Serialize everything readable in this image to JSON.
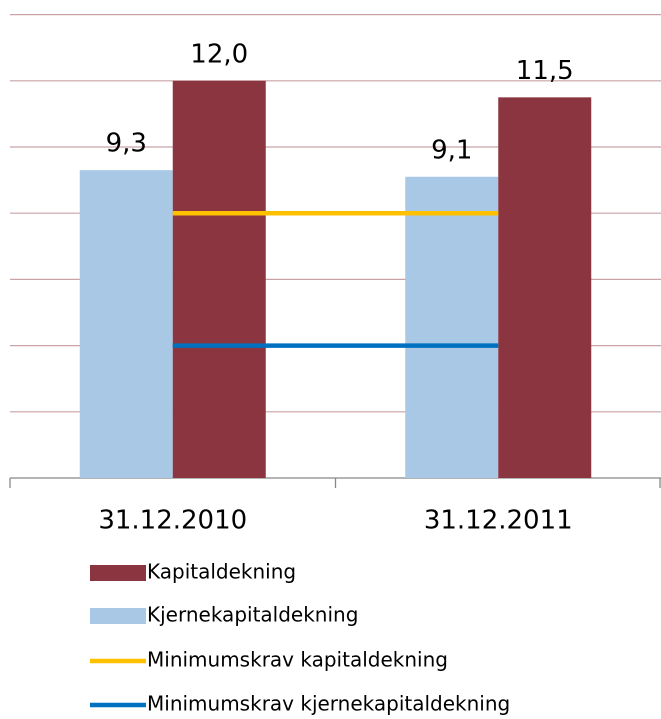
{
  "chart_data": {
    "type": "bar",
    "categories": [
      "31.12.2010",
      "31.12.2011"
    ],
    "series": [
      {
        "name": "Kapitaldekning",
        "type": "bar",
        "color": "#8b3540",
        "values": [
          12.0,
          11.5
        ],
        "value_labels": [
          "12,0",
          "11,5"
        ]
      },
      {
        "name": "Kjernekapitaldekning",
        "type": "bar",
        "color": "#a9c8e6",
        "values": [
          9.3,
          9.1
        ],
        "value_labels": [
          "9,3",
          "9,1"
        ]
      },
      {
        "name": "Minimumskrav kapitaldekning",
        "type": "line",
        "color": "#ffc000",
        "values": [
          8,
          8
        ]
      },
      {
        "name": "Minimumskrav kjernekapitaldekning",
        "type": "line",
        "color": "#0070c0",
        "values": [
          4,
          4
        ]
      }
    ],
    "bar_order": [
      1,
      0
    ],
    "ylim": [
      0,
      14
    ],
    "yticks": [
      0,
      2,
      4,
      6,
      8,
      10,
      12,
      14
    ],
    "grid": true
  }
}
